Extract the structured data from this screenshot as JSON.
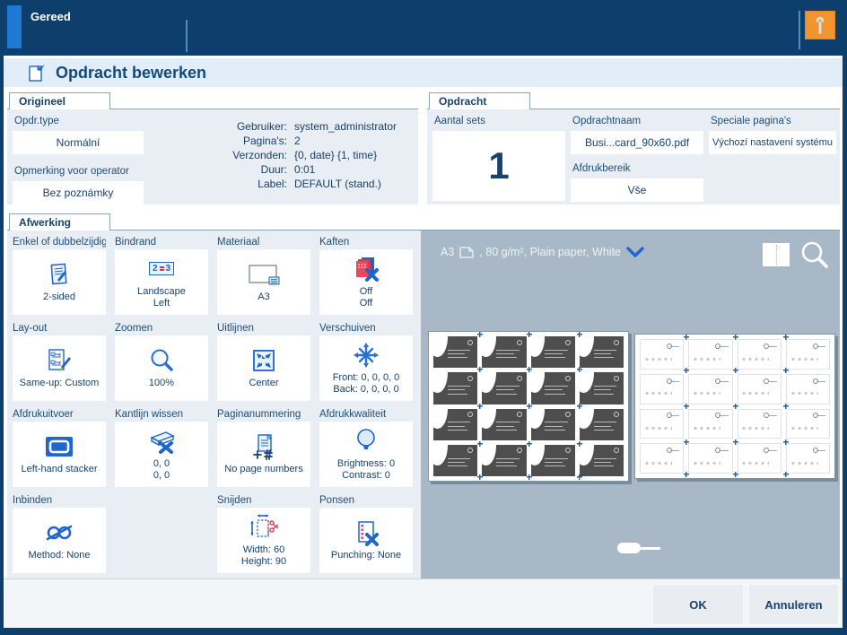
{
  "topbar": {
    "status": "Gereed"
  },
  "header": {
    "title": "Opdracht bewerken"
  },
  "origineel": {
    "tab": "Origineel",
    "fields": [
      {
        "label": "Opdr.type",
        "value": "Normální"
      },
      {
        "label": "Opmerking voor operator",
        "value": "Bez poznámky"
      }
    ],
    "info": [
      {
        "label": "Gebruiker:",
        "value": "system_administrator"
      },
      {
        "label": "Pagina's:",
        "value": "2"
      },
      {
        "label": "Verzonden:",
        "value": "{0, date} {1, time}"
      },
      {
        "label": "Duur:",
        "value": "0:01"
      },
      {
        "label": "Label:",
        "value": "DEFAULT (stand.)"
      }
    ]
  },
  "opdracht": {
    "tab": "Opdracht",
    "aantal_sets_label": "Aantal sets",
    "aantal_sets": "1",
    "opdrachtnaam_label": "Opdrachtnaam",
    "opdrachtnaam": "Busi...card_90x60.pdf",
    "afdrukbereik_label": "Afdrukbereik",
    "afdrukbereik": "Vše",
    "speciale_label": "Speciale pagina's",
    "speciale": "Výchozí nastavení systému"
  },
  "afwerking": {
    "tab": "Afwerking",
    "binding_numbers": [
      "2",
      "3"
    ],
    "items": [
      {
        "label": "Enkel of dubbelzijdig",
        "value": "2-sided",
        "icon": "two-sided-icon"
      },
      {
        "label": "Bindrand",
        "value": "Landscape\nLeft",
        "icon": "binding-edge-icon"
      },
      {
        "label": "Materiaal",
        "value": "A3",
        "icon": "media-icon"
      },
      {
        "label": "Kaften",
        "value": "Off\nOff",
        "icon": "covers-off-icon"
      },
      {
        "label": "Lay-out",
        "value": "Same-up: Custom",
        "icon": "layout-icon"
      },
      {
        "label": "Zoomen",
        "value": "100%",
        "icon": "zoom-icon"
      },
      {
        "label": "Uitlijnen",
        "value": "Center",
        "icon": "align-center-icon"
      },
      {
        "label": "Verschuiven",
        "value": "Front: 0, 0, 0, 0\nBack: 0, 0, 0, 0",
        "icon": "shift-icon"
      },
      {
        "label": "Afdrukuitvoer",
        "value": "Left-hand stacker",
        "icon": "output-tray-icon"
      },
      {
        "label": "Kantlijn wissen",
        "value": "0, 0\n0, 0",
        "icon": "erase-margin-icon"
      },
      {
        "label": "Paginanummering",
        "value": "No page numbers",
        "icon": "page-numbering-icon"
      },
      {
        "label": "Afdrukkwaliteit",
        "value": "Brightness: 0\nContrast: 0",
        "icon": "print-quality-icon"
      },
      {
        "label": "Inbinden",
        "value": "Method: None",
        "icon": "binding-icon"
      },
      {
        "label": "Snijden",
        "value": "Width: 60\nHeight: 90",
        "icon": "trim-icon"
      },
      {
        "label": "Ponsen",
        "value": "Punching: None",
        "icon": "punch-icon"
      }
    ]
  },
  "preview": {
    "paper_info": "A3",
    "paper_details": ", 80 g/m², Plain paper, White",
    "sheets": [
      {
        "side": "front",
        "rows": 4,
        "cols": 4
      },
      {
        "side": "back",
        "rows": 4,
        "cols": 4
      }
    ]
  },
  "footer": {
    "ok_label": "OK",
    "cancel_label": "Annuleren"
  },
  "colors": {
    "topbar": "#0e3e6b",
    "accent_blue": "#1e79d2",
    "settings_orange": "#f2952f",
    "icon_blue": "#1c66cc",
    "alert_red": "#d63a52",
    "preview_bg": "#a8b8c6"
  }
}
